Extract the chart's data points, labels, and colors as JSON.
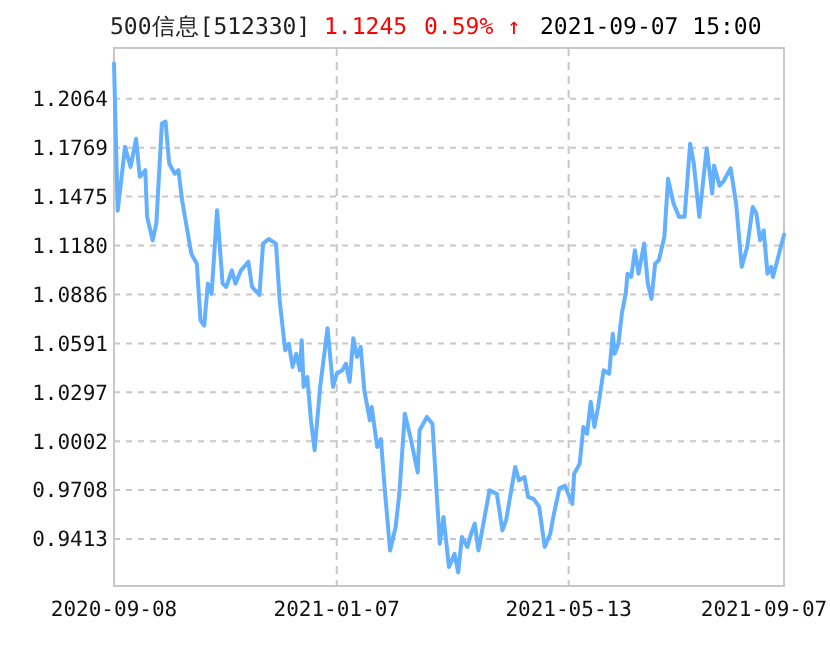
{
  "chart_data": {
    "type": "line",
    "title": "500信息[512330]",
    "annotations": [
      "1.1245",
      "0.59% ↑",
      "2021-09-07 15:00"
    ],
    "x": [
      "2020-09-08",
      "2020-09-10",
      "2020-09-14",
      "2020-09-17",
      "2020-09-20",
      "2020-09-22",
      "2020-09-25",
      "2020-09-26",
      "2020-09-29",
      "2020-10-01",
      "2020-10-04",
      "2020-10-06",
      "2020-10-08",
      "2020-10-11",
      "2020-10-13",
      "2020-10-15",
      "2020-10-20",
      "2020-10-23",
      "2020-10-25",
      "2020-10-27",
      "2020-10-29",
      "2020-10-31",
      "2020-11-01",
      "2020-11-03",
      "2020-11-06",
      "2020-11-08",
      "2020-11-11",
      "2020-11-13",
      "2020-11-16",
      "2020-11-20",
      "2020-11-22",
      "2020-11-26",
      "2020-11-28",
      "2020-12-01",
      "2020-12-05",
      "2020-12-07",
      "2020-12-10",
      "2020-12-12",
      "2020-12-14",
      "2020-12-16",
      "2020-12-18",
      "2020-12-19",
      "2020-12-20",
      "2020-12-22",
      "2020-12-24",
      "2020-12-26",
      "2020-12-29",
      "2021-01-02",
      "2021-01-05",
      "2021-01-07",
      "2021-01-10",
      "2021-01-12",
      "2021-01-14",
      "2021-01-16",
      "2021-01-18",
      "2021-01-20",
      "2021-01-22",
      "2021-01-25",
      "2021-01-26",
      "2021-01-29",
      "2021-01-31",
      "2021-02-02",
      "2021-02-05",
      "2021-02-08",
      "2021-02-10",
      "2021-02-13",
      "2021-02-16",
      "2021-02-20",
      "2021-02-21",
      "2021-02-25",
      "2021-02-28",
      "2021-03-04",
      "2021-03-06",
      "2021-03-09",
      "2021-03-12",
      "2021-03-14",
      "2021-03-16",
      "2021-03-19",
      "2021-03-21",
      "2021-03-23",
      "2021-03-25",
      "2021-03-28",
      "2021-03-31",
      "2021-04-04",
      "2021-04-07",
      "2021-04-09",
      "2021-04-14",
      "2021-04-16",
      "2021-04-19",
      "2021-04-21",
      "2021-04-24",
      "2021-04-27",
      "2021-04-30",
      "2021-05-03",
      "2021-05-05",
      "2021-05-08",
      "2021-05-11",
      "2021-05-15",
      "2021-05-16",
      "2021-05-19",
      "2021-05-21",
      "2021-05-23",
      "2021-05-25",
      "2021-05-27",
      "2021-05-29",
      "2021-06-01",
      "2021-06-04",
      "2021-06-06",
      "2021-06-07",
      "2021-06-09",
      "2021-06-11",
      "2021-06-13",
      "2021-06-14",
      "2021-06-16",
      "2021-06-18",
      "2021-06-20",
      "2021-06-23",
      "2021-06-25",
      "2021-06-27",
      "2021-06-29",
      "2021-07-01",
      "2021-07-04",
      "2021-07-06",
      "2021-07-09",
      "2021-07-12",
      "2021-07-15",
      "2021-07-18",
      "2021-07-20",
      "2021-07-23",
      "2021-07-27",
      "2021-07-30",
      "2021-07-31",
      "2021-08-03",
      "2021-08-05",
      "2021-08-09",
      "2021-08-12",
      "2021-08-15",
      "2021-08-18",
      "2021-08-21",
      "2021-08-23",
      "2021-08-25",
      "2021-08-27",
      "2021-08-29",
      "2021-08-31",
      "2021-09-01",
      "2021-09-07"
    ],
    "series": [
      {
        "color": "#62b0ff",
        "values": [
          1.2276,
          1.139,
          1.1775,
          1.1654,
          1.1823,
          1.1594,
          1.1634,
          1.1353,
          1.1212,
          1.1312,
          1.1915,
          1.1927,
          1.1674,
          1.1613,
          1.1634,
          1.1453,
          1.1131,
          1.1071,
          1.073,
          1.0698,
          1.0951,
          1.089,
          1.1052,
          1.1393,
          1.0951,
          1.0931,
          1.1031,
          1.0951,
          1.1031,
          1.1083,
          1.0931,
          1.0883,
          1.1192,
          1.122,
          1.1192,
          1.0851,
          1.0549,
          1.0589,
          1.0449,
          1.0529,
          1.0429,
          1.061,
          1.0329,
          1.0389,
          1.0128,
          0.9947,
          1.0329,
          1.0682,
          1.0329,
          1.0408,
          1.0429,
          1.0469,
          1.036,
          1.0622,
          1.051,
          1.057,
          1.0308,
          1.0128,
          1.0208,
          0.9967,
          1.0015,
          0.9726,
          0.9344,
          0.9485,
          0.9685,
          1.0167,
          1.0028,
          0.9814,
          1.0067,
          1.0148,
          1.0107,
          0.9384,
          0.9545,
          0.9244,
          0.9324,
          0.9212,
          0.9425,
          0.9365,
          0.9445,
          0.9505,
          0.9344,
          0.9525,
          0.9706,
          0.9685,
          0.9465,
          0.9525,
          0.9847,
          0.9766,
          0.9786,
          0.9666,
          0.9654,
          0.9606,
          0.9365,
          0.9445,
          0.9565,
          0.9718,
          0.9734,
          0.9625,
          0.9806,
          0.9866,
          1.0088,
          1.0047,
          1.024,
          1.0088,
          1.0208,
          1.0429,
          1.0408,
          1.0649,
          1.0529,
          1.0589,
          1.0778,
          1.089,
          1.1011,
          1.0991,
          1.1152,
          1.1011,
          1.1192,
          1.0951,
          1.0859,
          1.1071,
          1.1092,
          1.1233,
          1.1582,
          1.1433,
          1.1353,
          1.1353,
          1.1794,
          1.1674,
          1.1353,
          1.1766,
          1.1493,
          1.1662,
          1.1541,
          1.1565,
          1.1646,
          1.1433,
          1.1052,
          1.1172,
          1.1413,
          1.1373,
          1.1212,
          1.1272,
          1.1011,
          1.1052,
          1.0991,
          1.1245
        ]
      }
    ],
    "xlim": [
      "2020-09-08",
      "2021-09-07"
    ],
    "xticks": [
      "2020-09-08",
      "2021-01-07",
      "2021-05-13",
      "2021-09-07"
    ],
    "ylim": [
      0.913,
      1.237
    ],
    "yticks": [
      0.9413,
      0.9708,
      1.0002,
      1.0297,
      1.0591,
      1.0886,
      {
        "value": 1.118,
        "label": "1.1180"
      },
      1.1475,
      1.1769,
      1.2064
    ],
    "grid": true,
    "line_style": "solid",
    "marker": "none"
  }
}
